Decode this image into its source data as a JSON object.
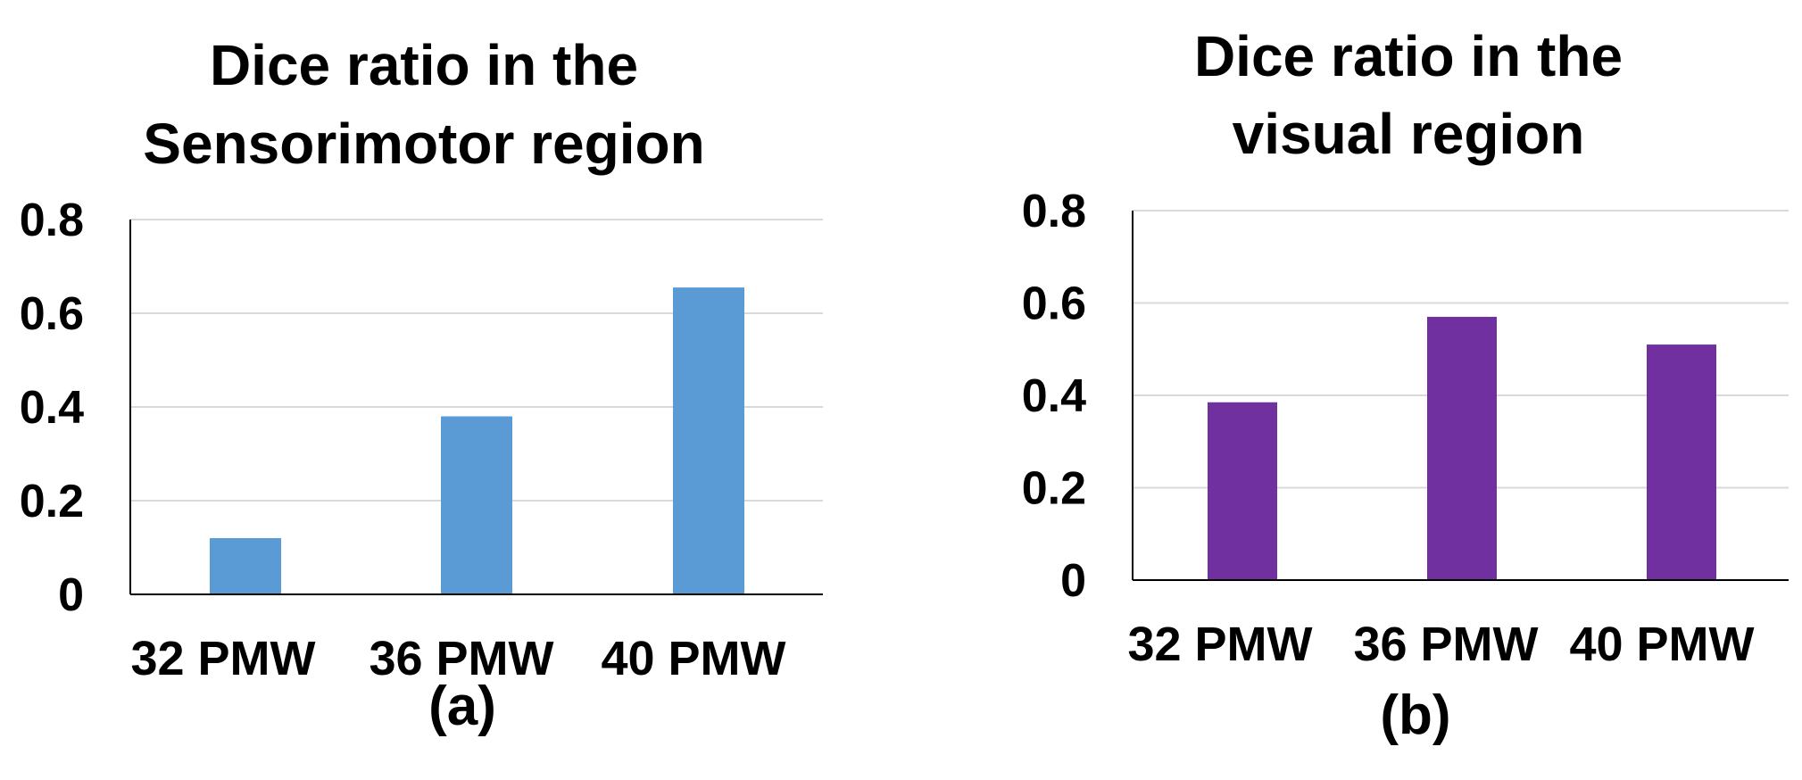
{
  "chart_data": [
    {
      "type": "bar",
      "title_lines": [
        "Dice ratio in the",
        "Sensorimotor region"
      ],
      "categories": [
        "32 PMW",
        "36 PMW",
        "40 PMW"
      ],
      "values": [
        0.12,
        0.38,
        0.655
      ],
      "ylim": [
        0,
        0.8
      ],
      "yticks": [
        "0",
        "0.2",
        "0.4",
        "0.6",
        "0.8"
      ],
      "grid": true,
      "color": "#5b9bd5",
      "panel_label": "(a)"
    },
    {
      "type": "bar",
      "title_lines": [
        "Dice ratio in the",
        "visual region"
      ],
      "categories": [
        "32 PMW",
        "36 PMW",
        "40 PMW"
      ],
      "values": [
        0.385,
        0.57,
        0.51
      ],
      "ylim": [
        0,
        0.8
      ],
      "yticks": [
        "0",
        "0.2",
        "0.4",
        "0.6",
        "0.8"
      ],
      "grid": true,
      "color": "#7030a0",
      "panel_label": "(b)"
    }
  ]
}
